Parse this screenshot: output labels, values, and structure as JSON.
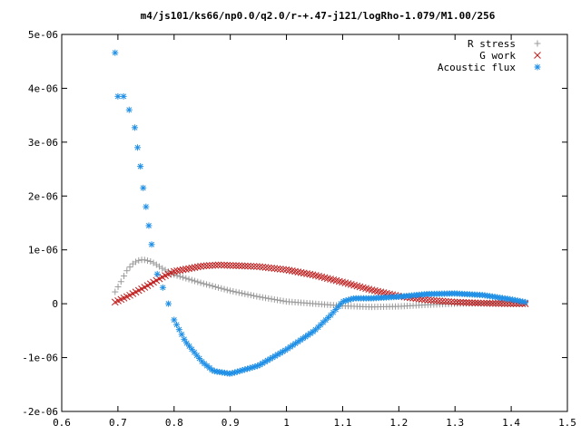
{
  "chart_data": {
    "type": "scatter",
    "title": "m4/js101/ks66/np0.0/q2.0/r-+.47-j121/logRho-1.079/M1.00/256",
    "xlabel": "",
    "ylabel": "",
    "xlim": [
      0.6,
      1.5
    ],
    "ylim": [
      -2e-06,
      5e-06
    ],
    "x_ticks": [
      0.6,
      0.7,
      0.8,
      0.9,
      1.0,
      1.1,
      1.2,
      1.3,
      1.4,
      1.5
    ],
    "x_tick_labels": [
      "0.6",
      "0.7",
      "0.8",
      "0.9",
      "1",
      "1.1",
      "1.2",
      "1.3",
      "1.4",
      "1.5"
    ],
    "y_ticks": [
      -2e-06,
      -1e-06,
      0,
      1e-06,
      2e-06,
      3e-06,
      4e-06,
      5e-06
    ],
    "y_tick_labels": [
      "-2e-06",
      "-1e-06",
      "0",
      "1e-06",
      "2e-06",
      "3e-06",
      "4e-06",
      "5e-06"
    ],
    "grid": false,
    "legend_position": "top-right",
    "series": [
      {
        "name": "R stress",
        "marker": "plus",
        "color": "#9a9a9a",
        "x_range": [
          0.695,
          1.425
        ],
        "point_count": 140,
        "keypoints": [
          [
            0.695,
            2.2e-07
          ],
          [
            0.705,
            4e-07
          ],
          [
            0.715,
            6e-07
          ],
          [
            0.725,
            7.3e-07
          ],
          [
            0.735,
            8e-07
          ],
          [
            0.745,
            8.2e-07
          ],
          [
            0.76,
            7.8e-07
          ],
          [
            0.78,
            6.5e-07
          ],
          [
            0.8,
            5.4e-07
          ],
          [
            0.85,
            3.8e-07
          ],
          [
            0.9,
            2.4e-07
          ],
          [
            0.95,
            1.3e-07
          ],
          [
            1.0,
            4e-08
          ],
          [
            1.05,
            0
          ],
          [
            1.1,
            -4e-08
          ],
          [
            1.15,
            -6e-08
          ],
          [
            1.2,
            -5e-08
          ],
          [
            1.25,
            -2e-08
          ],
          [
            1.3,
            0
          ],
          [
            1.35,
            1e-08
          ],
          [
            1.4,
            2e-08
          ],
          [
            1.425,
            2e-08
          ]
        ]
      },
      {
        "name": "G work",
        "marker": "cross",
        "color": "#c02020",
        "x_range": [
          0.695,
          1.425
        ],
        "point_count": 140,
        "keypoints": [
          [
            0.695,
            3e-08
          ],
          [
            0.72,
            1.5e-07
          ],
          [
            0.75,
            3.2e-07
          ],
          [
            0.78,
            5e-07
          ],
          [
            0.8,
            6e-07
          ],
          [
            0.85,
            7e-07
          ],
          [
            0.88,
            7.2e-07
          ],
          [
            0.95,
            6.9e-07
          ],
          [
            1.0,
            6.3e-07
          ],
          [
            1.05,
            5.3e-07
          ],
          [
            1.1,
            4e-07
          ],
          [
            1.15,
            2.6e-07
          ],
          [
            1.2,
            1.4e-07
          ],
          [
            1.25,
            7e-08
          ],
          [
            1.3,
            3e-08
          ],
          [
            1.35,
            1e-08
          ],
          [
            1.4,
            0
          ],
          [
            1.425,
            0
          ]
        ]
      },
      {
        "name": "Acoustic flux",
        "marker": "star",
        "color": "#1f8fe6",
        "x_range": [
          0.695,
          1.425
        ],
        "point_count": 140,
        "keypoints": [
          [
            0.695,
            4.66e-06
          ],
          [
            0.7,
            3.85e-06
          ],
          [
            0.71,
            3.85e-06
          ],
          [
            0.72,
            3.6e-06
          ],
          [
            0.73,
            3.27e-06
          ],
          [
            0.735,
            2.9e-06
          ],
          [
            0.74,
            2.55e-06
          ],
          [
            0.745,
            2.15e-06
          ],
          [
            0.75,
            1.8e-06
          ],
          [
            0.755,
            1.45e-06
          ],
          [
            0.76,
            1.1e-06
          ],
          [
            0.77,
            5.5e-07
          ],
          [
            0.78,
            3e-07
          ],
          [
            0.79,
            0
          ],
          [
            0.8,
            -3e-07
          ],
          [
            0.82,
            -7e-07
          ],
          [
            0.85,
            -1.08e-06
          ],
          [
            0.87,
            -1.25e-06
          ],
          [
            0.9,
            -1.3e-06
          ],
          [
            0.95,
            -1.15e-06
          ],
          [
            1.0,
            -8.5e-07
          ],
          [
            1.05,
            -5e-07
          ],
          [
            1.08,
            -2e-07
          ],
          [
            1.1,
            4e-08
          ],
          [
            1.12,
            1e-07
          ],
          [
            1.15,
            1e-07
          ],
          [
            1.2,
            1.3e-07
          ],
          [
            1.25,
            1.8e-07
          ],
          [
            1.3,
            1.9e-07
          ],
          [
            1.35,
            1.6e-07
          ],
          [
            1.4,
            8e-08
          ],
          [
            1.425,
            3e-08
          ]
        ]
      }
    ]
  }
}
